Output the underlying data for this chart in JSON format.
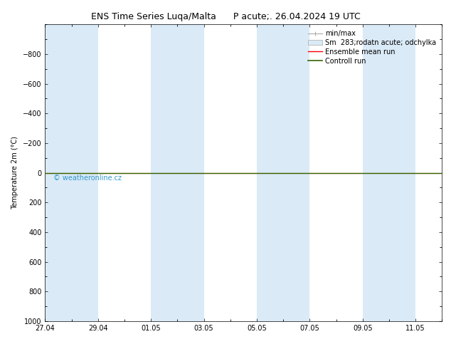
{
  "title": "ENS Time Series Luqa/Malta      P acute;. 26.04.2024 19 UTC",
  "ylabel": "Temperature 2m (°C)",
  "ylim_bottom": 1000,
  "ylim_top": -1000,
  "yticks": [
    -800,
    -600,
    -400,
    -200,
    0,
    200,
    400,
    600,
    800,
    1000
  ],
  "xtick_labels": [
    "27.04",
    "29.04",
    "01.05",
    "03.05",
    "05.05",
    "07.05",
    "09.05",
    "11.05"
  ],
  "xtick_positions": [
    0,
    2,
    4,
    6,
    8,
    10,
    12,
    14
  ],
  "background_color": "#ffffff",
  "plot_bg_color": "#ffffff",
  "shaded_band_color": "#daeaf7",
  "shaded_bands": [
    [
      0,
      2
    ],
    [
      4,
      6
    ],
    [
      8,
      10
    ],
    [
      12,
      14
    ]
  ],
  "ensemble_mean_color": "#ff0000",
  "control_run_color": "#336600",
  "watermark": "© weatheronline.cz",
  "watermark_color": "#3399cc",
  "legend_entries": [
    "min/max",
    "Sm  283;rodatn acute; odchylka",
    "Ensemble mean run",
    "Controll run"
  ],
  "flat_line_y": 0,
  "title_fontsize": 9,
  "axis_fontsize": 7,
  "tick_fontsize": 7,
  "xlim": [
    0,
    15
  ],
  "legend_fontsize": 7
}
